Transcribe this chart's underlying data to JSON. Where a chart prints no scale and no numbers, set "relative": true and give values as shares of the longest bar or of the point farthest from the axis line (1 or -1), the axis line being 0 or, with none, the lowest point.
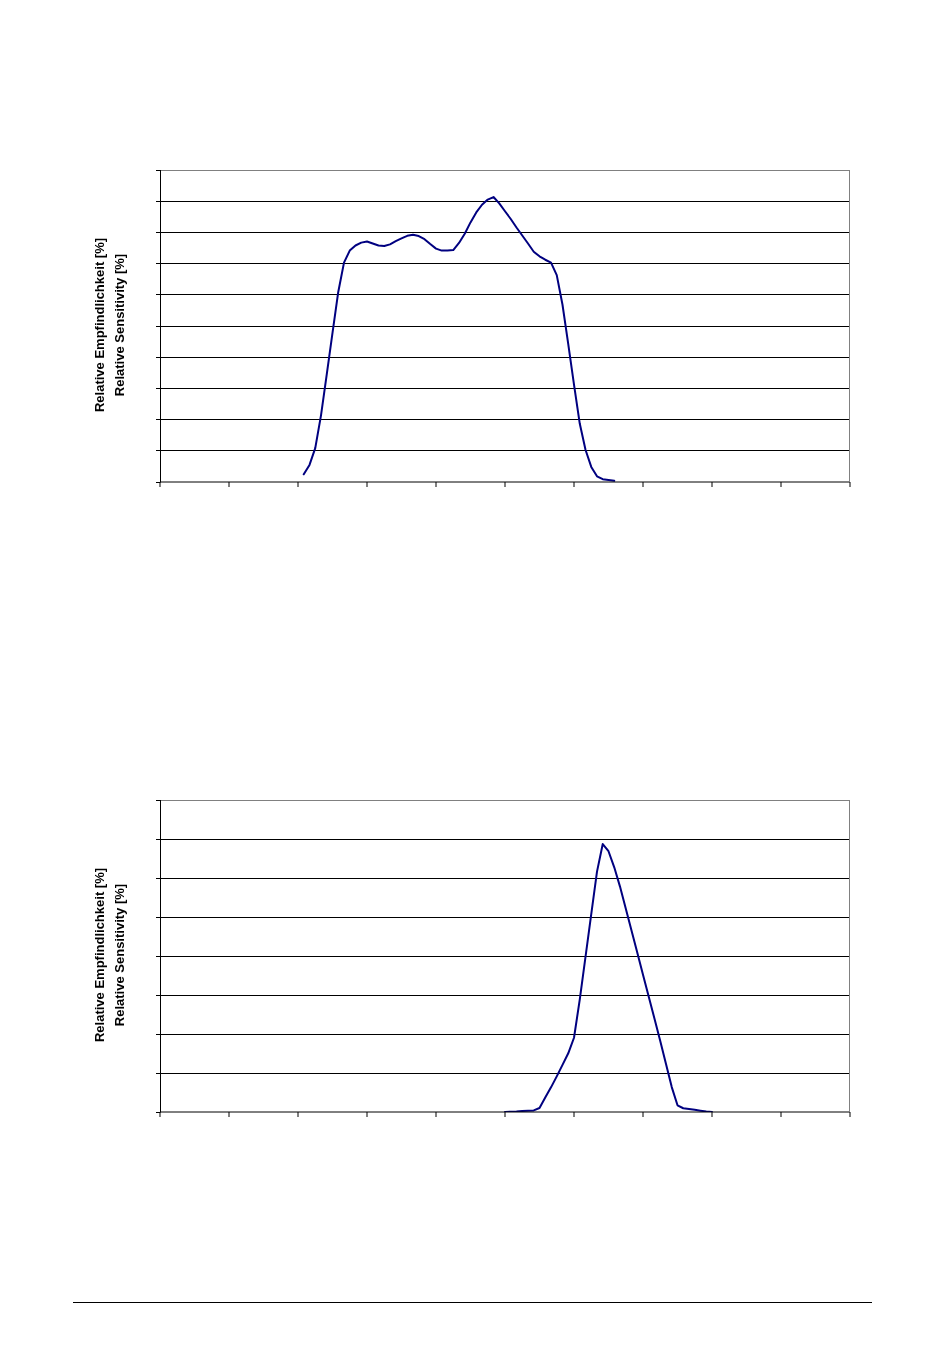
{
  "chart_data": [
    {
      "type": "line",
      "ylabel": "Relative Empfindlichkeit [%]\nRelative Sensitivity [%]",
      "relative": true,
      "grid": "y",
      "marker": "none",
      "line_style": "solid",
      "categories": [
        null,
        null,
        null,
        null,
        null,
        null,
        null,
        null,
        null,
        null,
        null,
        null,
        null,
        null,
        null,
        null,
        null,
        null,
        null,
        null,
        null,
        null,
        null,
        null,
        null,
        null,
        null,
        null,
        null,
        null,
        null,
        null,
        null,
        null,
        null,
        null,
        null,
        null,
        null,
        null,
        null,
        null,
        null,
        null,
        null,
        null,
        null,
        null,
        null,
        null,
        null,
        null,
        null,
        null,
        null,
        null,
        null,
        null,
        null,
        null,
        null,
        null,
        null,
        null,
        null,
        null,
        null,
        null,
        null,
        null,
        null,
        null,
        null,
        null,
        null,
        null,
        null,
        null,
        null,
        null,
        null,
        null,
        null,
        null,
        null,
        null,
        null,
        null,
        null,
        null,
        null,
        null,
        null,
        null,
        null,
        null,
        null,
        null,
        null,
        null,
        null,
        null,
        null,
        null,
        null,
        null,
        null,
        null,
        null,
        null,
        null,
        null,
        null,
        null,
        null,
        null,
        null,
        null,
        null,
        null,
        null
      ],
      "series": [
        {
          "color": "#000080",
          "values": [
            null,
            null,
            null,
            null,
            null,
            null,
            null,
            null,
            null,
            null,
            null,
            null,
            null,
            null,
            null,
            null,
            null,
            null,
            null,
            null,
            null,
            null,
            null,
            null,
            null,
            0.027,
            0.06,
            0.119,
            0.234,
            0.378,
            0.523,
            0.667,
            0.77,
            0.812,
            0.83,
            0.84,
            0.844,
            0.837,
            0.83,
            0.828,
            0.834,
            0.845,
            0.855,
            0.864,
            0.868,
            0.863,
            0.852,
            0.835,
            0.819,
            0.812,
            0.812,
            0.814,
            0.839,
            0.871,
            0.911,
            0.946,
            0.973,
            0.991,
            1,
            0.978,
            0.95,
            0.923,
            0.893,
            0.865,
            0.837,
            0.808,
            0.792,
            0.78,
            0.77,
            0.726,
            0.622,
            0.484,
            0.342,
            0.205,
            0.113,
            0.053,
            0.02,
            0.01,
            0.007,
            0.004,
            null,
            null,
            null,
            null,
            null,
            null,
            null,
            null,
            null,
            null,
            null,
            null,
            null,
            null,
            null,
            null,
            null,
            null,
            null,
            null,
            null,
            null,
            null,
            null,
            null,
            null,
            null,
            null,
            null,
            null,
            null,
            null,
            null,
            null,
            null,
            null,
            null,
            null,
            null,
            null,
            null
          ]
        }
      ]
    },
    {
      "type": "line",
      "ylabel": "Relative Empfindlichkeit [%]\nRelative Sensitivity [%]",
      "relative": true,
      "grid": "y",
      "marker": "none",
      "line_style": "solid",
      "categories": [
        null,
        null,
        null,
        null,
        null,
        null,
        null,
        null,
        null,
        null,
        null,
        null,
        null,
        null,
        null,
        null,
        null,
        null,
        null,
        null,
        null,
        null,
        null,
        null,
        null,
        null,
        null,
        null,
        null,
        null,
        null,
        null,
        null,
        null,
        null,
        null,
        null,
        null,
        null,
        null,
        null,
        null,
        null,
        null,
        null,
        null,
        null,
        null,
        null,
        null,
        null,
        null,
        null,
        null,
        null,
        null,
        null,
        null,
        null,
        null,
        null,
        null,
        null,
        null,
        null,
        null,
        null,
        null,
        null,
        null,
        null,
        null,
        null,
        null,
        null,
        null,
        null,
        null,
        null,
        null,
        null,
        null,
        null,
        null,
        null,
        null,
        null,
        null,
        null,
        null,
        null,
        null,
        null,
        null,
        null,
        null,
        null,
        null,
        null,
        null,
        null,
        null,
        null,
        null,
        null,
        null,
        null,
        null,
        null,
        null,
        null,
        null,
        null,
        null,
        null,
        null,
        null,
        null,
        null,
        null,
        null
      ],
      "series": [
        {
          "color": "#000080",
          "values": [
            null,
            null,
            null,
            null,
            null,
            null,
            null,
            null,
            null,
            null,
            null,
            null,
            null,
            null,
            null,
            null,
            null,
            null,
            null,
            null,
            null,
            null,
            null,
            null,
            null,
            null,
            null,
            null,
            null,
            null,
            null,
            null,
            null,
            null,
            null,
            null,
            null,
            null,
            null,
            null,
            null,
            null,
            null,
            null,
            null,
            null,
            null,
            null,
            null,
            null,
            null,
            null,
            null,
            null,
            null,
            null,
            null,
            null,
            null,
            null,
            0,
            0.001,
            0.002,
            0.004,
            0.005,
            0.006,
            0.015,
            0.054,
            0.092,
            0.133,
            0.176,
            0.219,
            0.277,
            0.419,
            0.579,
            0.738,
            0.897,
            1,
            0.973,
            0.913,
            0.841,
            0.759,
            0.677,
            0.595,
            0.512,
            0.43,
            0.348,
            0.265,
            0.179,
            0.093,
            0.025,
            0.014,
            0.011,
            0.008,
            0.005,
            0.002,
            0,
            null,
            null,
            null,
            null,
            null,
            null,
            null,
            null,
            null,
            null,
            null,
            null,
            null,
            null,
            null,
            null,
            null,
            null,
            null,
            null,
            null,
            null,
            null,
            null
          ]
        }
      ]
    }
  ]
}
